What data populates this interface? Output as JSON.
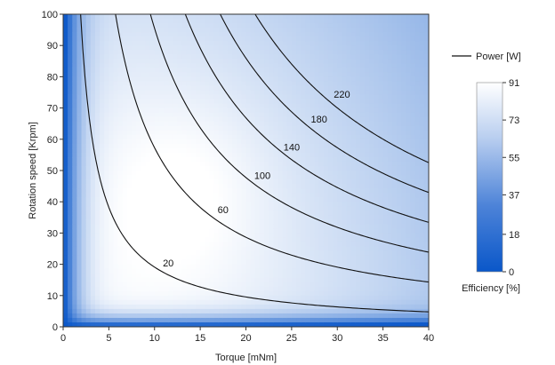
{
  "chart_data": {
    "type": "heatmap",
    "title": "",
    "xlabel": "Torque [mNm]",
    "ylabel": "Rotation speed [Krpm]",
    "xlim": [
      0,
      40
    ],
    "ylim": [
      0,
      100
    ],
    "x_ticks": [
      0,
      5,
      10,
      15,
      20,
      25,
      30,
      35,
      40
    ],
    "y_ticks": [
      0,
      10,
      20,
      30,
      40,
      50,
      60,
      70,
      80,
      90,
      100
    ],
    "grid": false,
    "colorbar": {
      "label": "Efficiency [%]",
      "min": 0,
      "max": 91,
      "ticks": [
        0,
        18,
        37,
        55,
        73,
        91
      ],
      "colors": [
        "#0a57c9",
        "#ffffff"
      ]
    },
    "contour_legend": "Power [W]",
    "contour_levels": [
      20,
      60,
      100,
      140,
      180,
      220
    ],
    "contour_labels": [
      {
        "level": 20,
        "x": 11.5,
        "y": 20.5
      },
      {
        "level": 60,
        "x": 17.5,
        "y": 37.5
      },
      {
        "level": 100,
        "x": 21.8,
        "y": 48.5
      },
      {
        "level": 140,
        "x": 25.0,
        "y": 57.5
      },
      {
        "level": 180,
        "x": 28.0,
        "y": 66.5
      },
      {
        "level": 220,
        "x": 30.5,
        "y": 74.5
      }
    ]
  }
}
